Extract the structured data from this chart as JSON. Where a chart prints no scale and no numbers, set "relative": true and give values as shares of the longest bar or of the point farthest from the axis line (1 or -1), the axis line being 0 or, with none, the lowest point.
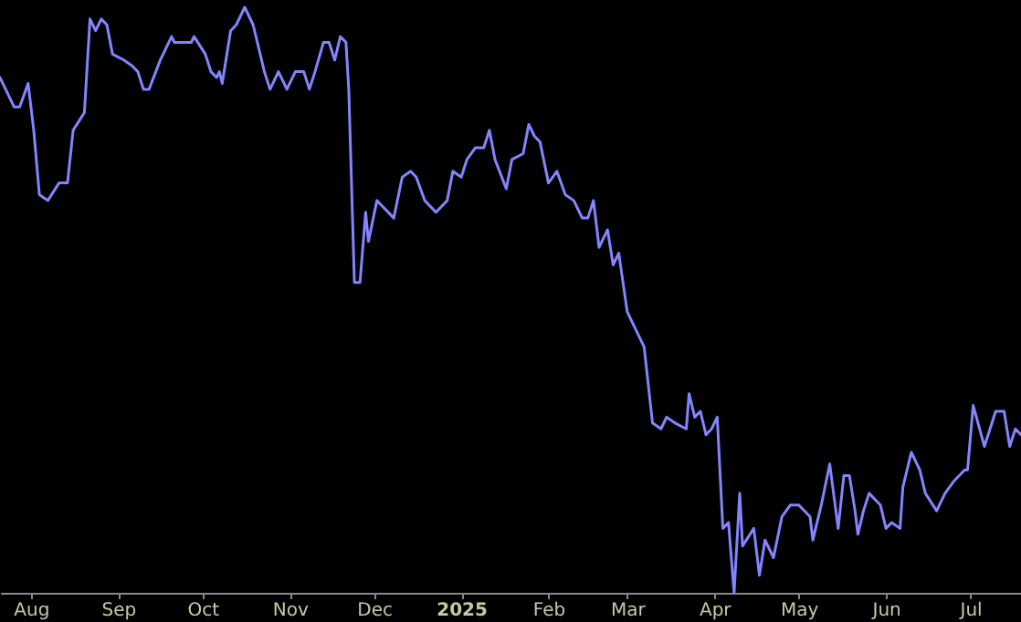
{
  "chart_data": {
    "type": "line",
    "relative": true,
    "grid": false,
    "marker": "none",
    "line_style": "solid",
    "x": [
      "2024-07-21",
      "2024-07-23",
      "2024-07-26",
      "2024-07-28",
      "2024-07-31",
      "2024-08-02",
      "2024-08-04",
      "2024-08-07",
      "2024-08-11",
      "2024-08-14",
      "2024-08-16",
      "2024-08-20",
      "2024-08-22",
      "2024-08-24",
      "2024-08-26",
      "2024-08-28",
      "2024-08-30",
      "2024-09-03",
      "2024-09-06",
      "2024-09-08",
      "2024-09-10",
      "2024-09-12",
      "2024-09-16",
      "2024-09-20",
      "2024-09-21",
      "2024-09-24",
      "2024-09-27",
      "2024-09-28",
      "2024-10-02",
      "2024-10-04",
      "2024-10-06",
      "2024-10-07",
      "2024-10-08",
      "2024-10-11",
      "2024-10-13",
      "2024-10-16",
      "2024-10-19",
      "2024-10-23",
      "2024-10-25",
      "2024-10-28",
      "2024-10-31",
      "2024-11-03",
      "2024-11-06",
      "2024-11-08",
      "2024-11-10",
      "2024-11-13",
      "2024-11-15",
      "2024-11-17",
      "2024-11-19",
      "2024-11-21",
      "2024-11-22",
      "2024-11-24",
      "2024-11-26",
      "2024-11-28",
      "2024-11-29",
      "2024-12-02",
      "2024-12-04",
      "2024-12-08",
      "2024-12-11",
      "2024-12-14",
      "2024-12-16",
      "2024-12-19",
      "2024-12-23",
      "2024-12-27",
      "2024-12-29",
      "2025-01-01",
      "2025-01-03",
      "2025-01-06",
      "2025-01-09",
      "2025-01-11",
      "2025-01-13",
      "2025-01-17",
      "2025-01-19",
      "2025-01-23",
      "2025-01-25",
      "2025-01-27",
      "2025-01-29",
      "2025-02-01",
      "2025-02-04",
      "2025-02-07",
      "2025-02-10",
      "2025-02-13",
      "2025-02-15",
      "2025-02-17",
      "2025-02-19",
      "2025-02-22",
      "2025-02-24",
      "2025-02-26",
      "2025-03-01",
      "2025-03-04",
      "2025-03-07",
      "2025-03-10",
      "2025-03-13",
      "2025-03-15",
      "2025-03-18",
      "2025-03-22",
      "2025-03-23",
      "2025-03-25",
      "2025-03-27",
      "2025-03-29",
      "2025-03-31",
      "2025-04-02",
      "2025-04-04",
      "2025-04-06",
      "2025-04-08",
      "2025-04-10",
      "2025-04-11",
      "2025-04-15",
      "2025-04-17",
      "2025-04-19",
      "2025-04-22",
      "2025-04-25",
      "2025-04-28",
      "2025-05-01",
      "2025-05-05",
      "2025-05-06",
      "2025-05-09",
      "2025-05-12",
      "2025-05-15",
      "2025-05-17",
      "2025-05-19",
      "2025-05-21",
      "2025-05-22",
      "2025-05-24",
      "2025-05-26",
      "2025-05-30",
      "2025-06-01",
      "2025-06-03",
      "2025-06-06",
      "2025-06-07",
      "2025-06-10",
      "2025-06-13",
      "2025-06-15",
      "2025-06-19",
      "2025-06-22",
      "2025-06-25",
      "2025-06-29",
      "2025-06-30",
      "2025-07-02",
      "2025-07-06",
      "2025-07-10",
      "2025-07-13",
      "2025-07-15",
      "2025-07-17",
      "2025-07-19"
    ],
    "series": [
      {
        "color": "#8484ff",
        "values": [
          0.88,
          0.86,
          0.83,
          0.83,
          0.87,
          0.79,
          0.68,
          0.67,
          0.7,
          0.7,
          0.79,
          0.82,
          0.98,
          0.96,
          0.98,
          0.97,
          0.92,
          0.91,
          0.9,
          0.89,
          0.86,
          0.86,
          0.91,
          0.95,
          0.94,
          0.94,
          0.94,
          0.95,
          0.92,
          0.89,
          0.88,
          0.89,
          0.87,
          0.96,
          0.97,
          1,
          0.97,
          0.89,
          0.86,
          0.89,
          0.86,
          0.89,
          0.89,
          0.86,
          0.89,
          0.94,
          0.94,
          0.91,
          0.95,
          0.94,
          0.86,
          0.53,
          0.53,
          0.65,
          0.6,
          0.67,
          0.66,
          0.64,
          0.71,
          0.72,
          0.71,
          0.67,
          0.65,
          0.67,
          0.72,
          0.71,
          0.74,
          0.76,
          0.76,
          0.79,
          0.74,
          0.69,
          0.74,
          0.75,
          0.8,
          0.78,
          0.77,
          0.7,
          0.72,
          0.68,
          0.67,
          0.64,
          0.64,
          0.67,
          0.59,
          0.62,
          0.56,
          0.58,
          0.48,
          0.45,
          0.42,
          0.29,
          0.28,
          0.3,
          0.29,
          0.28,
          0.34,
          0.3,
          0.31,
          0.27,
          0.28,
          0.3,
          0.11,
          0.12,
          0,
          0.17,
          0.08,
          0.11,
          0.03,
          0.09,
          0.06,
          0.13,
          0.15,
          0.15,
          0.13,
          0.09,
          0.15,
          0.22,
          0.11,
          0.2,
          0.2,
          0.14,
          0.1,
          0.14,
          0.17,
          0.15,
          0.11,
          0.12,
          0.11,
          0.18,
          0.24,
          0.21,
          0.17,
          0.14,
          0.17,
          0.19,
          0.21,
          0.21,
          0.32,
          0.25,
          0.31,
          0.31,
          0.25,
          0.28,
          0.27
        ]
      }
    ],
    "xlim": [
      "2024-07-21",
      "2025-07-19"
    ],
    "xticks": [
      {
        "value": "2024-08-01",
        "label": "Aug"
      },
      {
        "value": "2024-09-01",
        "label": "Sep"
      },
      {
        "value": "2024-10-01",
        "label": "Oct"
      },
      {
        "value": "2024-11-01",
        "label": "Nov"
      },
      {
        "value": "2024-12-01",
        "label": "Dec"
      },
      {
        "value": "2025-01-01",
        "label": "2025"
      },
      {
        "value": "2025-02-01",
        "label": "Feb"
      },
      {
        "value": "2025-03-01",
        "label": "Mar"
      },
      {
        "value": "2025-04-01",
        "label": "Apr"
      },
      {
        "value": "2025-05-01",
        "label": "May"
      },
      {
        "value": "2025-06-01",
        "label": "Jun"
      },
      {
        "value": "2025-07-01",
        "label": "Jul"
      }
    ]
  }
}
